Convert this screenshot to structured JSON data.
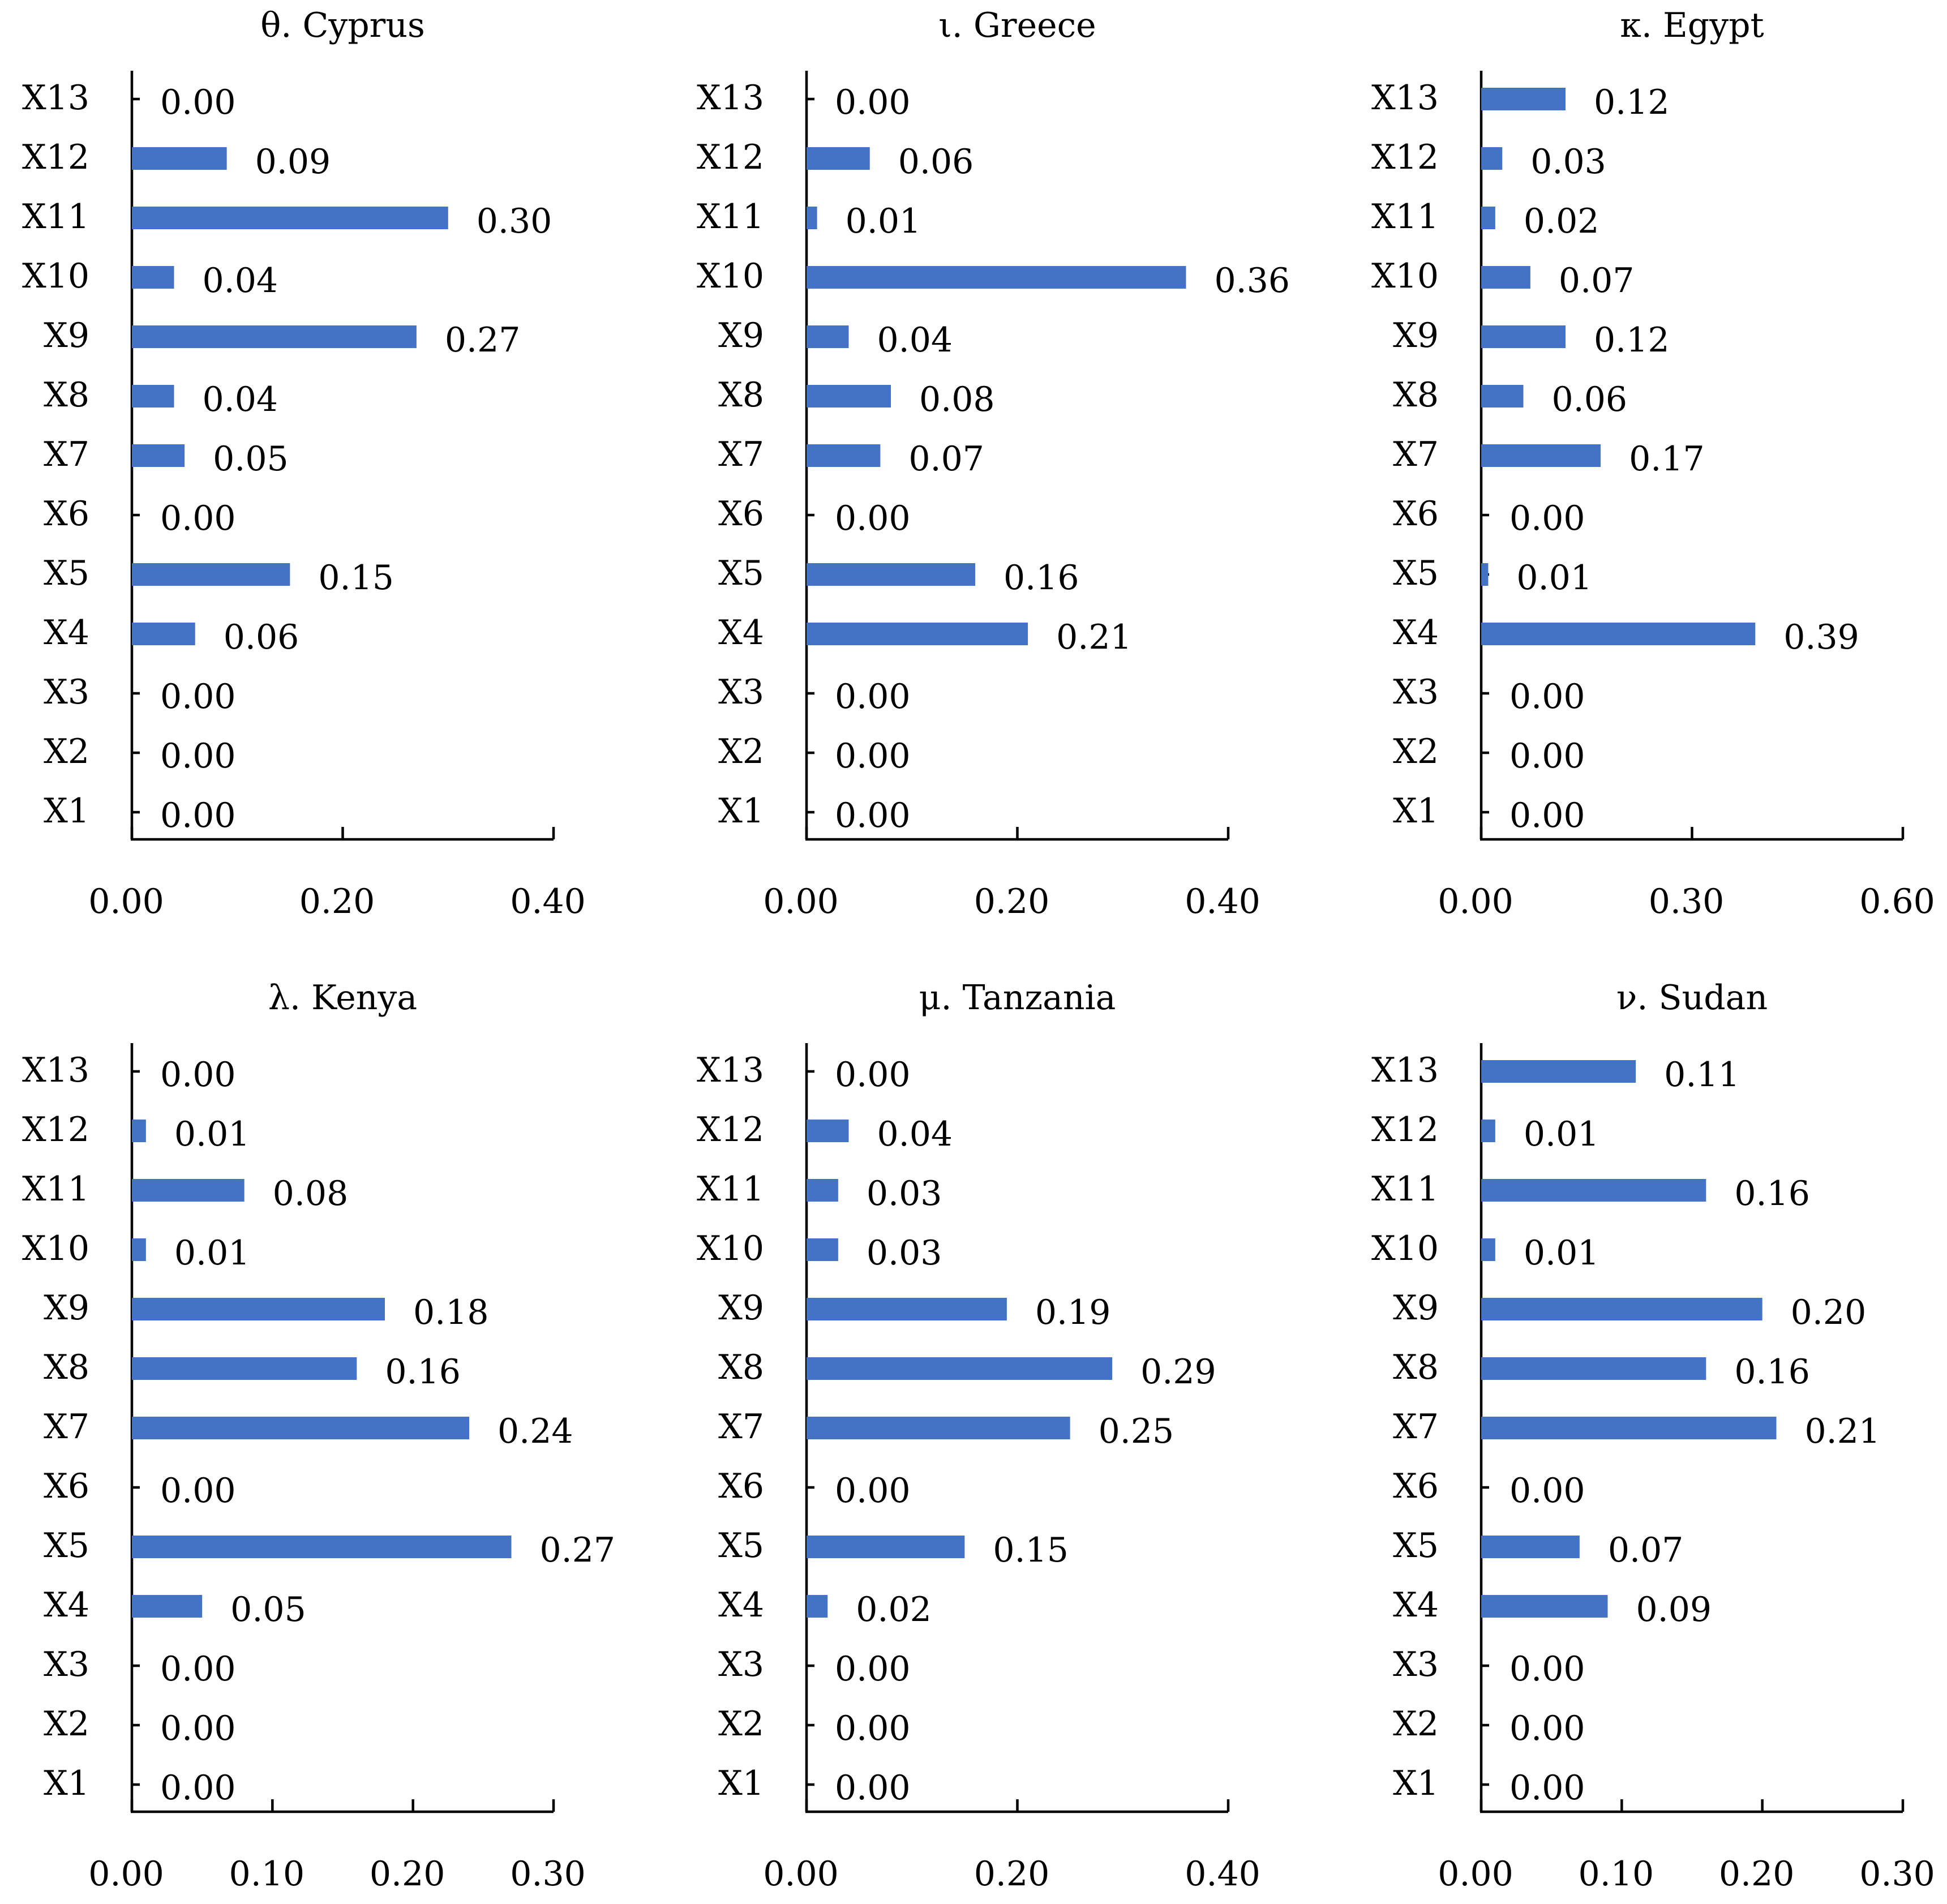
{
  "chart_data": [
    {
      "type": "bar",
      "orientation": "horizontal",
      "title": "θ. Cyprus",
      "categories": [
        "X1",
        "X2",
        "X3",
        "X4",
        "X5",
        "X6",
        "X7",
        "X8",
        "X9",
        "X10",
        "X11",
        "X12",
        "X13"
      ],
      "values": [
        0.0,
        0.0,
        0.0,
        0.06,
        0.15,
        0.0,
        0.05,
        0.04,
        0.27,
        0.04,
        0.3,
        0.09,
        0.0
      ],
      "value_labels": [
        "0.00",
        "0.00",
        "0.00",
        "0.06",
        "0.15",
        "0.00",
        "0.05",
        "0.04",
        "0.27",
        "0.04",
        "0.30",
        "0.09",
        "0.00"
      ],
      "xlim": [
        0,
        0.4
      ],
      "xticks": [
        0,
        0.2,
        0.4
      ],
      "xtick_labels": [
        "0.00",
        "0.20",
        "0.40"
      ],
      "color": "#4472c4"
    },
    {
      "type": "bar",
      "orientation": "horizontal",
      "title": "ι. Greece",
      "categories": [
        "X1",
        "X2",
        "X3",
        "X4",
        "X5",
        "X6",
        "X7",
        "X8",
        "X9",
        "X10",
        "X11",
        "X12",
        "X13"
      ],
      "values": [
        0.0,
        0.0,
        0.0,
        0.21,
        0.16,
        0.0,
        0.07,
        0.08,
        0.04,
        0.36,
        0.01,
        0.06,
        0.0
      ],
      "value_labels": [
        "0.00",
        "0.00",
        "0.00",
        "0.21",
        "0.16",
        "0.00",
        "0.07",
        "0.08",
        "0.04",
        "0.36",
        "0.01",
        "0.06",
        "0.00"
      ],
      "xlim": [
        0,
        0.4
      ],
      "xticks": [
        0,
        0.2,
        0.4
      ],
      "xtick_labels": [
        "0.00",
        "0.20",
        "0.40"
      ],
      "color": "#4472c4"
    },
    {
      "type": "bar",
      "orientation": "horizontal",
      "title": "κ. Egypt",
      "categories": [
        "X1",
        "X2",
        "X3",
        "X4",
        "X5",
        "X6",
        "X7",
        "X8",
        "X9",
        "X10",
        "X11",
        "X12",
        "X13"
      ],
      "values": [
        0.0,
        0.0,
        0.0,
        0.39,
        0.01,
        0.0,
        0.17,
        0.06,
        0.12,
        0.07,
        0.02,
        0.03,
        0.12
      ],
      "value_labels": [
        "0.00",
        "0.00",
        "0.00",
        "0.39",
        "0.01",
        "0.00",
        "0.17",
        "0.06",
        "0.12",
        "0.07",
        "0.02",
        "0.03",
        "0.12"
      ],
      "xlim": [
        0,
        0.6
      ],
      "xticks": [
        0,
        0.3,
        0.6
      ],
      "xtick_labels": [
        "0.00",
        "0.30",
        "0.60"
      ],
      "color": "#4472c4"
    },
    {
      "type": "bar",
      "orientation": "horizontal",
      "title": "λ. Kenya",
      "categories": [
        "X1",
        "X2",
        "X3",
        "X4",
        "X5",
        "X6",
        "X7",
        "X8",
        "X9",
        "X10",
        "X11",
        "X12",
        "X13"
      ],
      "values": [
        0.0,
        0.0,
        0.0,
        0.05,
        0.27,
        0.0,
        0.24,
        0.16,
        0.18,
        0.01,
        0.08,
        0.01,
        0.0
      ],
      "value_labels": [
        "0.00",
        "0.00",
        "0.00",
        "0.05",
        "0.27",
        "0.00",
        "0.24",
        "0.16",
        "0.18",
        "0.01",
        "0.08",
        "0.01",
        "0.00"
      ],
      "xlim": [
        0,
        0.3
      ],
      "xticks": [
        0,
        0.1,
        0.2,
        0.3
      ],
      "xtick_labels": [
        "0.00",
        "0.10",
        "0.20",
        "0.30"
      ],
      "color": "#4472c4"
    },
    {
      "type": "bar",
      "orientation": "horizontal",
      "title": "μ. Tanzania",
      "categories": [
        "X1",
        "X2",
        "X3",
        "X4",
        "X5",
        "X6",
        "X7",
        "X8",
        "X9",
        "X10",
        "X11",
        "X12",
        "X13"
      ],
      "values": [
        0.0,
        0.0,
        0.0,
        0.02,
        0.15,
        0.0,
        0.25,
        0.29,
        0.19,
        0.03,
        0.03,
        0.04,
        0.0
      ],
      "value_labels": [
        "0.00",
        "0.00",
        "0.00",
        "0.02",
        "0.15",
        "0.00",
        "0.25",
        "0.29",
        "0.19",
        "0.03",
        "0.03",
        "0.04",
        "0.00"
      ],
      "xlim": [
        0,
        0.4
      ],
      "xticks": [
        0,
        0.2,
        0.4
      ],
      "xtick_labels": [
        "0.00",
        "0.20",
        "0.40"
      ],
      "color": "#4472c4"
    },
    {
      "type": "bar",
      "orientation": "horizontal",
      "title": "ν. Sudan",
      "categories": [
        "X1",
        "X2",
        "X3",
        "X4",
        "X5",
        "X6",
        "X7",
        "X8",
        "X9",
        "X10",
        "X11",
        "X12",
        "X13"
      ],
      "values": [
        0.0,
        0.0,
        0.0,
        0.09,
        0.07,
        0.0,
        0.21,
        0.16,
        0.2,
        0.01,
        0.16,
        0.01,
        0.11
      ],
      "value_labels": [
        "0.00",
        "0.00",
        "0.00",
        "0.09",
        "0.07",
        "0.00",
        "0.21",
        "0.16",
        "0.20",
        "0.01",
        "0.16",
        "0.01",
        "0.11"
      ],
      "xlim": [
        0,
        0.3
      ],
      "xticks": [
        0,
        0.1,
        0.2,
        0.3
      ],
      "xtick_labels": [
        "0.00",
        "0.10",
        "0.20",
        "0.30"
      ],
      "color": "#4472c4"
    }
  ]
}
